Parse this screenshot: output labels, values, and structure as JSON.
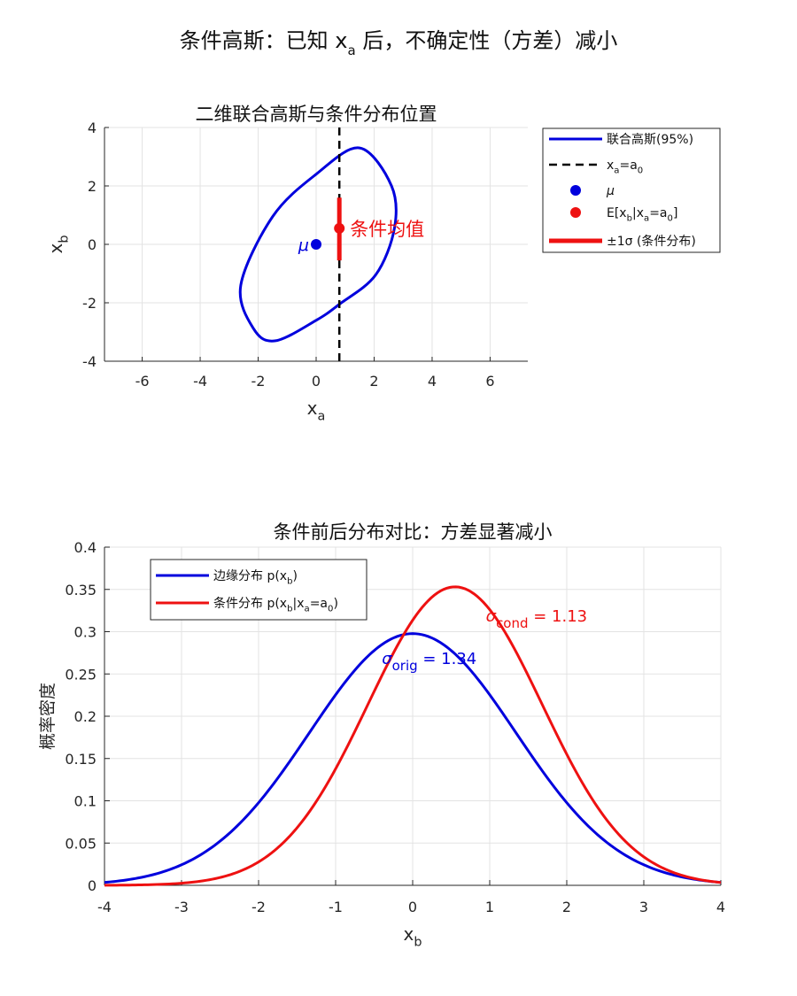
{
  "figure": {
    "suptitle_pre": "条件高斯：已知 ",
    "suptitle_var": "x",
    "suptitle_sub": "a",
    "suptitle_post": " 后，不确定性（方差）减小"
  },
  "colors": {
    "blue": "#0000dd",
    "red": "#ee1111",
    "black": "#000000",
    "grid": "#e3e3e3"
  },
  "chart_data": [
    {
      "type": "line",
      "title": "二维联合高斯与条件分布位置",
      "xlabel": "x_a",
      "ylabel": "x_b",
      "xlim": [
        -7.3,
        7.3
      ],
      "ylim": [
        -4,
        4
      ],
      "xticks": [
        -6,
        -4,
        -2,
        0,
        2,
        4,
        6
      ],
      "yticks": [
        -4,
        -2,
        0,
        2,
        4
      ],
      "grid": true,
      "legend_position": "outside-right",
      "legend": [
        {
          "key": "ellipse",
          "label": "联合高斯(95%)"
        },
        {
          "key": "vline",
          "label": "x_a=a_0"
        },
        {
          "key": "mu",
          "label": "μ"
        },
        {
          "key": "cmean",
          "label": "E[x_b|x_a=a_0]"
        },
        {
          "key": "sigma",
          "label": "±1σ (条件分布)"
        }
      ],
      "ellipse": {
        "center": [
          0,
          0
        ],
        "points": [
          [
            0.8,
            -2.05
          ],
          [
            2.05,
            -1.05
          ],
          [
            2.7,
            0.55
          ],
          [
            2.6,
            2.0
          ],
          [
            1.5,
            3.3
          ],
          [
            0.0,
            2.4
          ],
          [
            -1.5,
            0.95
          ],
          [
            -2.6,
            -1.4
          ],
          [
            -2.15,
            -2.9
          ],
          [
            -1.4,
            -3.3
          ],
          [
            0.0,
            -2.6
          ]
        ]
      },
      "vline_x": 0.8,
      "mu_point": [
        0,
        0
      ],
      "mu_label": "μ",
      "cond_mean_point": [
        0.8,
        0.55
      ],
      "cond_mean_label": "条件均值",
      "sigma_segment": {
        "x": 0.8,
        "y0": -0.55,
        "y1": 1.6
      }
    },
    {
      "type": "line",
      "title": "条件前后分布对比：方差显著减小",
      "xlabel": "x_b",
      "ylabel": "概率密度",
      "xlim": [
        -4,
        4
      ],
      "ylim": [
        0,
        0.4
      ],
      "xticks": [
        -4,
        -3,
        -2,
        -1,
        0,
        1,
        2,
        3,
        4
      ],
      "yticks": [
        0,
        0.05,
        0.1,
        0.15,
        0.2,
        0.25,
        0.3,
        0.35,
        0.4
      ],
      "grid": true,
      "legend_position": "top-left",
      "series": [
        {
          "name": "边缘分布 p(x_b)",
          "color_key": "blue",
          "mu": 0,
          "sigma": 1.34
        },
        {
          "name": "条件分布 p(x_b|x_a=a_0)",
          "color_key": "red",
          "mu": 0.55,
          "sigma": 1.13
        }
      ],
      "annotations": [
        {
          "sym": "σ",
          "sub": "orig",
          "rest": " = 1.34",
          "color_key": "blue",
          "at": [
            -0.4,
            0.262
          ]
        },
        {
          "sym": "σ",
          "sub": "cond",
          "rest": " = 1.13",
          "color_key": "red",
          "at": [
            0.95,
            0.312
          ]
        }
      ]
    }
  ]
}
